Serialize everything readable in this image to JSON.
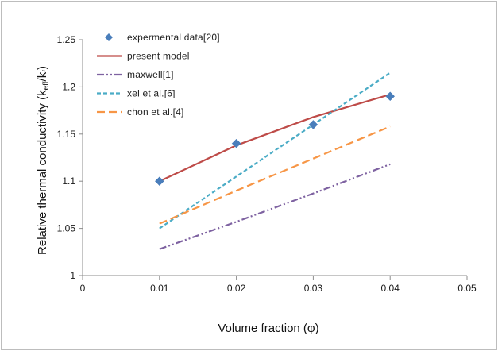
{
  "chart_data": {
    "type": "line",
    "xlabel": "Volume fraction (φ)",
    "ylabel": {
      "prefix": "Relative thermal conductivity (k",
      "sub1": "eff",
      "mid": "/k",
      "sub2": "f",
      "suffix": ")"
    },
    "xlim": [
      0,
      0.05
    ],
    "ylim": [
      1,
      1.25
    ],
    "x_ticks": [
      "0",
      "0.01",
      "0.02",
      "0.03",
      "0.04",
      "0.05"
    ],
    "x_tick_values": [
      0,
      0.01,
      0.02,
      0.03,
      0.04,
      0.05
    ],
    "y_ticks": [
      "1",
      "1.05",
      "1.1",
      "1.15",
      "1.2",
      "1.25"
    ],
    "y_tick_values": [
      1,
      1.05,
      1.1,
      1.15,
      1.2,
      1.25
    ],
    "grid": false,
    "legend_position": "top-left",
    "series": [
      {
        "name": "expermental data[20]",
        "style": "markers",
        "color": "#4a7ebb",
        "x": [
          0.01,
          0.02,
          0.03,
          0.04
        ],
        "y": [
          1.1,
          1.14,
          1.16,
          1.19
        ]
      },
      {
        "name": "present model",
        "style": "solid",
        "color": "#be4b48",
        "x": [
          0.01,
          0.02,
          0.03,
          0.04
        ],
        "y": [
          1.1,
          1.138,
          1.168,
          1.192
        ]
      },
      {
        "name": "maxwell[1]",
        "style": "dashdotdot",
        "color": "#7e62a1",
        "x": [
          0.01,
          0.02,
          0.03,
          0.04
        ],
        "y": [
          1.028,
          1.057,
          1.087,
          1.118
        ]
      },
      {
        "name": "xei et al.[6]",
        "style": "dashed-short",
        "color": "#4bacc6",
        "x": [
          0.01,
          0.02,
          0.03,
          0.04
        ],
        "y": [
          1.05,
          1.105,
          1.16,
          1.215
        ]
      },
      {
        "name": "chon et al.[4]",
        "style": "dashed-long",
        "color": "#f79646",
        "x": [
          0.01,
          0.02,
          0.03,
          0.04
        ],
        "y": [
          1.055,
          1.09,
          1.124,
          1.158
        ]
      }
    ]
  }
}
